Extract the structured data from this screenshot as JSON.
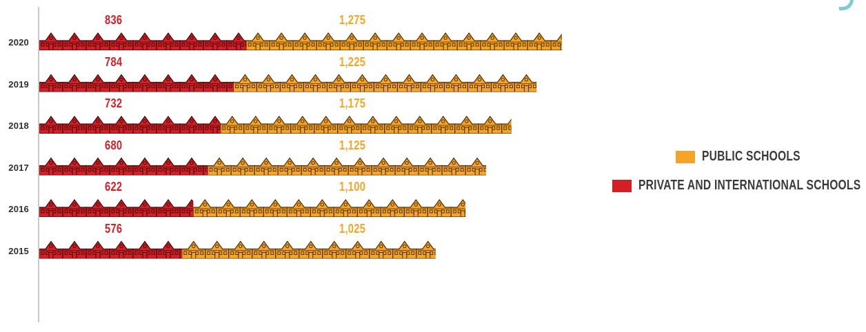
{
  "chart_data": {
    "type": "bar",
    "orientation": "horizontal",
    "stacked": true,
    "categories": [
      "2020",
      "2019",
      "2018",
      "2017",
      "2016",
      "2015"
    ],
    "series": [
      {
        "name": "PRIVATE AND INTERNATIONAL SCHOOLS",
        "color": "#d51f27",
        "values": [
          836,
          784,
          732,
          680,
          622,
          576
        ],
        "labels": [
          "836",
          "784",
          "732",
          "680",
          "622",
          "576"
        ]
      },
      {
        "name": "PUBLIC SCHOOLS",
        "color": "#f4a427",
        "values": [
          1275,
          1225,
          1175,
          1125,
          1100,
          1025
        ],
        "labels": [
          "1,275",
          "1,225",
          "1,175",
          "1,125",
          "1,100",
          "1,025"
        ]
      }
    ],
    "marker": "school-building-icon",
    "legend_position": "right",
    "legend_order": [
      "PUBLIC SCHOOLS",
      "PRIVATE AND INTERNATIONAL SCHOOLS"
    ],
    "title": "",
    "xlabel": "",
    "ylabel": "",
    "grid": false
  }
}
